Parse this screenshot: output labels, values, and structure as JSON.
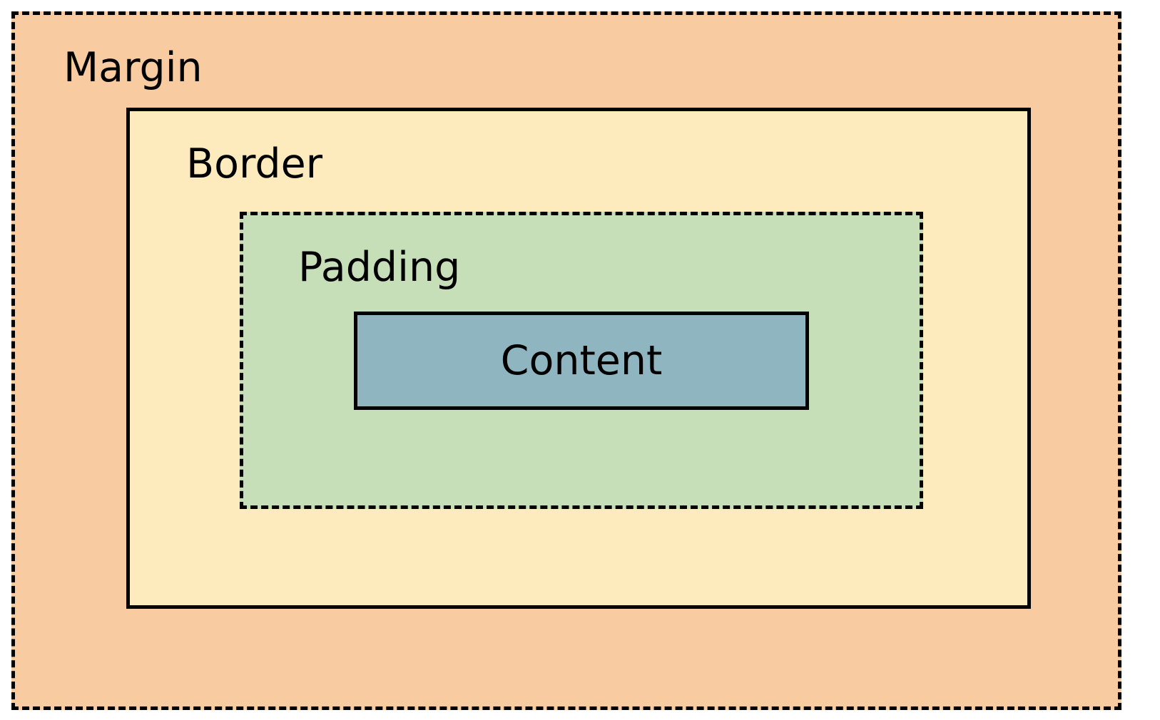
{
  "diagram": {
    "layers": [
      {
        "id": "margin",
        "label": "Margin",
        "fill": "#f8cca0",
        "border_style": "dashed"
      },
      {
        "id": "border",
        "label": "Border",
        "fill": "#fdebbd",
        "border_style": "solid"
      },
      {
        "id": "padding",
        "label": "Padding",
        "fill": "#c6dfb9",
        "border_style": "dashed"
      },
      {
        "id": "content",
        "label": "Content",
        "fill": "#8eb5c0",
        "border_style": "solid"
      }
    ],
    "outline_color": "#000000"
  }
}
